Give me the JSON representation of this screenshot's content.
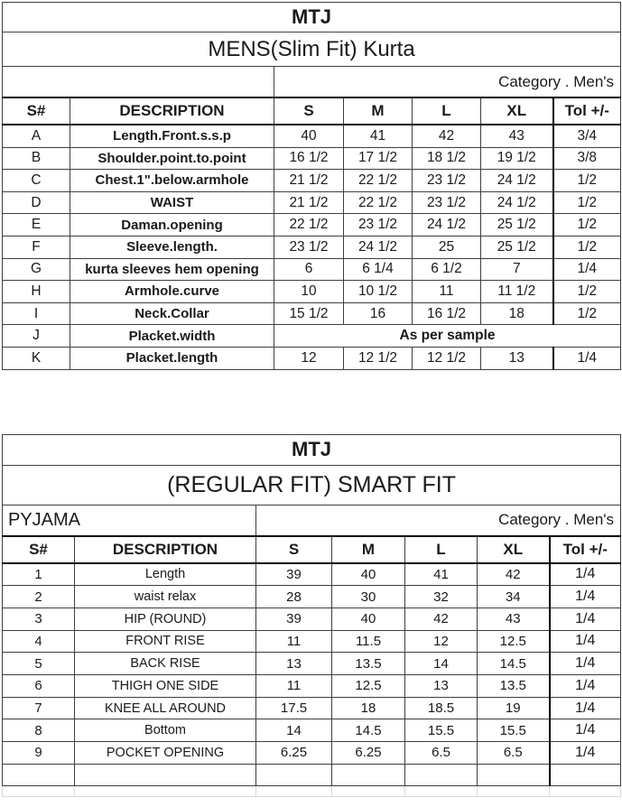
{
  "colors": {
    "text": "#1a1a1a",
    "border_thin": "#3f3f3f",
    "border_thick": "#000000",
    "ghost_border": "#d9d9d9",
    "background": "#ffffff"
  },
  "tables": [
    {
      "title": "MTJ",
      "subtitle": "MENS(Slim Fit) Kurta",
      "corner_label": "",
      "category_label": "Category .  Men's",
      "columns": [
        "S#",
        "DESCRIPTION",
        "S",
        "M",
        "L",
        "XL",
        "Tol +/-"
      ],
      "rows": [
        {
          "sn": "A",
          "desc": "Length.Front.s.s.p",
          "values": [
            "40",
            "41",
            "42",
            "43"
          ],
          "tol": "3/4"
        },
        {
          "sn": "B",
          "desc": "Shoulder.point.to.point",
          "values": [
            "16 1/2",
            "17 1/2",
            "18 1/2",
            "19 1/2"
          ],
          "tol": "3/8"
        },
        {
          "sn": "C",
          "desc": "Chest.1\".below.armhole",
          "values": [
            "21 1/2",
            "22 1/2",
            "23 1/2",
            "24 1/2"
          ],
          "tol": "1/2"
        },
        {
          "sn": "D",
          "desc": "WAIST",
          "values": [
            "21 1/2",
            "22 1/2",
            "23 1/2",
            "24 1/2"
          ],
          "tol": "1/2"
        },
        {
          "sn": "E",
          "desc": "Daman.opening",
          "values": [
            "22 1/2",
            "23 1/2",
            "24 1/2",
            "25 1/2"
          ],
          "tol": "1/2"
        },
        {
          "sn": "F",
          "desc": "Sleeve.length.",
          "values": [
            "23 1/2",
            "24 1/2",
            "25",
            "25 1/2"
          ],
          "tol": "1/2"
        },
        {
          "sn": "G",
          "desc": "kurta sleeves hem opening",
          "values": [
            "6",
            "6 1/4",
            "6 1/2",
            "7"
          ],
          "tol": "1/4"
        },
        {
          "sn": "H",
          "desc": "Armhole.curve",
          "values": [
            "10",
            "10 1/2",
            "11",
            "11 1/2"
          ],
          "tol": "1/2"
        },
        {
          "sn": "I",
          "desc": "Neck.Collar",
          "values": [
            "15 1/2",
            "16",
            "16 1/2",
            "18"
          ],
          "tol": "1/2"
        },
        {
          "sn": "J",
          "desc": "Placket.width",
          "merged": "As per sample"
        },
        {
          "sn": "K",
          "desc": "Placket.length",
          "values": [
            "12",
            "12 1/2",
            "12 1/2",
            "13"
          ],
          "tol": "1/4"
        }
      ],
      "trailing_blank_row": false,
      "ghost_row": false
    },
    {
      "title": "MTJ",
      "subtitle": "(REGULAR FIT) SMART FIT",
      "corner_label": "PYJAMA",
      "category_label": "Category .  Men's",
      "columns": [
        "S#",
        "DESCRIPTION",
        "S",
        "M",
        "L",
        "XL",
        "Tol +/-"
      ],
      "rows": [
        {
          "sn": "1",
          "desc": "Length",
          "values": [
            "39",
            "40",
            "41",
            "42"
          ],
          "tol": "1/4"
        },
        {
          "sn": "2",
          "desc": "waist relax",
          "values": [
            "28",
            "30",
            "32",
            "34"
          ],
          "tol": "1/4"
        },
        {
          "sn": "3",
          "desc": "HIP (ROUND)",
          "values": [
            "39",
            "40",
            "42",
            "43"
          ],
          "tol": "1/4"
        },
        {
          "sn": "4",
          "desc": "FRONT RISE",
          "values": [
            "11",
            "11.5",
            "12",
            "12.5"
          ],
          "tol": "1/4"
        },
        {
          "sn": "5",
          "desc": "BACK RISE",
          "values": [
            "13",
            "13.5",
            "14",
            "14.5"
          ],
          "tol": "1/4"
        },
        {
          "sn": "6",
          "desc": "THIGH ONE SIDE",
          "values": [
            "11",
            "12.5",
            "13",
            "13.5"
          ],
          "tol": "1/4"
        },
        {
          "sn": "7",
          "desc": "KNEE ALL AROUND",
          "values": [
            "17.5",
            "18",
            "18.5",
            "19"
          ],
          "tol": "1/4"
        },
        {
          "sn": "8",
          "desc": "Bottom",
          "values": [
            "14",
            "14.5",
            "15.5",
            "15.5"
          ],
          "tol": "1/4"
        },
        {
          "sn": "9",
          "desc": "POCKET OPENING",
          "values": [
            "6.25",
            "6.25",
            "6.5",
            "6.5"
          ],
          "tol": "1/4"
        }
      ],
      "trailing_blank_row": true,
      "ghost_row": true
    }
  ]
}
